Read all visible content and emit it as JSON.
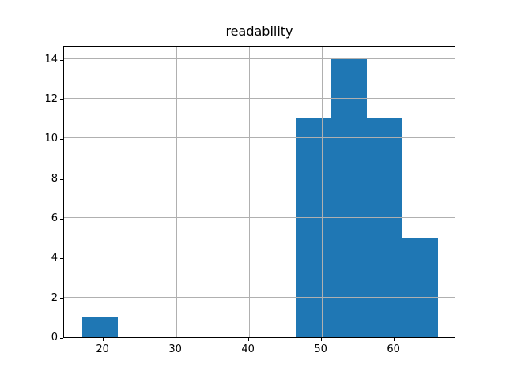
{
  "chart_data": {
    "type": "bar",
    "subtype": "histogram",
    "title": "readability",
    "xlabel": "",
    "ylabel": "",
    "bin_edges": [
      17.06,
      21.96,
      26.86,
      31.76,
      36.66,
      41.56,
      46.46,
      51.36,
      56.26,
      61.16,
      66.06
    ],
    "counts": [
      1,
      0,
      0,
      0,
      0,
      0,
      11,
      14,
      11,
      5
    ],
    "xticks": [
      20,
      30,
      40,
      50,
      60
    ],
    "yticks": [
      0,
      2,
      4,
      6,
      8,
      10,
      12,
      14
    ],
    "xlim": [
      14.61,
      68.51
    ],
    "ylim": [
      0,
      14.7
    ],
    "grid": true,
    "legend": null
  },
  "colors": {
    "bar": "#1f77b4",
    "grid": "#b0b0b0",
    "spine": "#000000",
    "text": "#000000",
    "background": "#ffffff"
  }
}
